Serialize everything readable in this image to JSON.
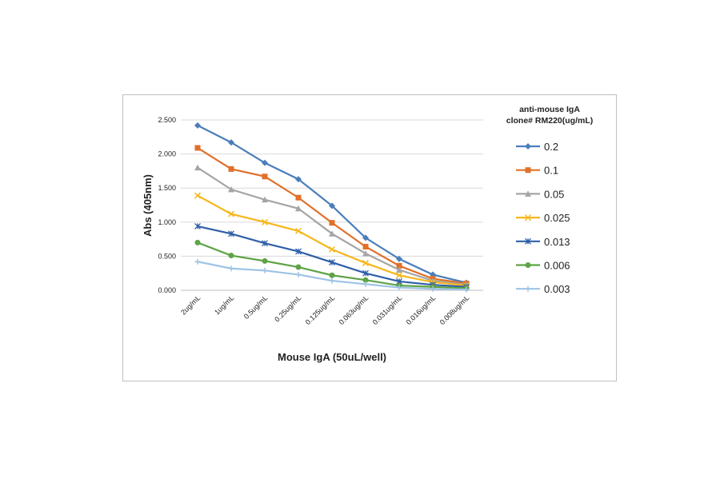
{
  "chart_data": {
    "type": "line",
    "xlabel": "Mouse IgA (50uL/well)",
    "ylabel": "Abs (405nm)",
    "legend_title": [
      "anti-mouse IgA",
      "clone# RM220(ug/mL)"
    ],
    "legend_position": "right",
    "grid": true,
    "categories": [
      "2ug/mL",
      "1ug/mL",
      "0.5ug/mL",
      "0.25ug/mL",
      "0.125ug/mL",
      "0.063ug/mL",
      "0.031ug/mL",
      "0.016ug/mL",
      "0.008ug/mL"
    ],
    "ylim": [
      0,
      2.5
    ],
    "yticks": [
      {
        "value": 0,
        "label": "0.000"
      },
      {
        "value": 0.5,
        "label": "0.500"
      },
      {
        "value": 1,
        "label": "1.000"
      },
      {
        "value": 1.5,
        "label": "1.500"
      },
      {
        "value": 2,
        "label": "2.000"
      },
      {
        "value": 2.5,
        "label": "2.500"
      }
    ],
    "series": [
      {
        "name": "0.2",
        "color": "#4a7ebb",
        "marker": "diamond",
        "values": [
          2.42,
          2.17,
          1.87,
          1.63,
          1.24,
          0.77,
          0.46,
          0.23,
          0.11
        ]
      },
      {
        "name": "0.1",
        "color": "#e0702a",
        "marker": "square",
        "values": [
          2.09,
          1.78,
          1.67,
          1.36,
          0.99,
          0.64,
          0.36,
          0.17,
          0.1
        ]
      },
      {
        "name": "0.05",
        "color": "#a5a5a5",
        "marker": "triangle",
        "values": [
          1.8,
          1.48,
          1.33,
          1.2,
          0.83,
          0.54,
          0.3,
          0.14,
          0.08
        ]
      },
      {
        "name": "0.025",
        "color": "#f5b71b",
        "marker": "x",
        "values": [
          1.39,
          1.12,
          1.0,
          0.87,
          0.6,
          0.4,
          0.22,
          0.12,
          0.07
        ]
      },
      {
        "name": "0.013",
        "color": "#2f5fa8",
        "marker": "star",
        "values": [
          0.94,
          0.83,
          0.69,
          0.57,
          0.41,
          0.25,
          0.13,
          0.08,
          0.05
        ]
      },
      {
        "name": "0.006",
        "color": "#5ea345",
        "marker": "circle",
        "values": [
          0.7,
          0.51,
          0.43,
          0.34,
          0.22,
          0.15,
          0.07,
          0.05,
          0.03
        ]
      },
      {
        "name": "0.003",
        "color": "#9ec3e6",
        "marker": "plus",
        "values": [
          0.42,
          0.32,
          0.29,
          0.23,
          0.14,
          0.09,
          0.04,
          0.02,
          0.01
        ]
      }
    ]
  }
}
